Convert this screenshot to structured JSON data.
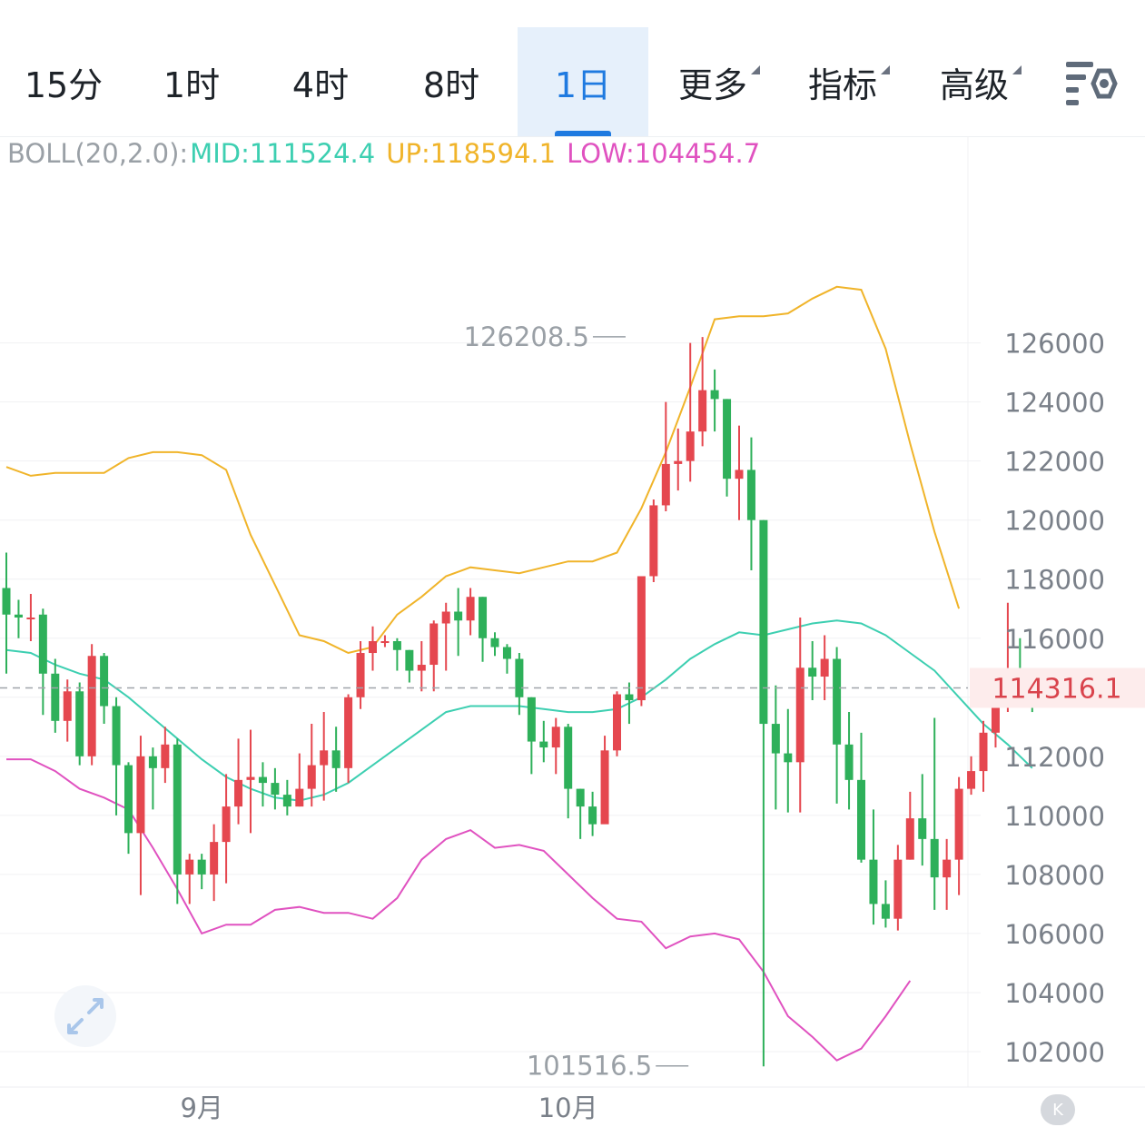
{
  "tabs": [
    {
      "label": "15分",
      "active": false,
      "dropdown": false
    },
    {
      "label": "1时",
      "active": false,
      "dropdown": false
    },
    {
      "label": "4时",
      "active": false,
      "dropdown": false
    },
    {
      "label": "8时",
      "active": false,
      "dropdown": false
    },
    {
      "label": "1日",
      "active": true,
      "dropdown": false
    },
    {
      "label": "更多",
      "active": false,
      "dropdown": true
    },
    {
      "label": "指标",
      "active": false,
      "dropdown": true
    },
    {
      "label": "高级",
      "active": false,
      "dropdown": true
    }
  ],
  "settings_icon": "chart-settings-icon",
  "indicator": {
    "name": "BOLL(20,2.0):",
    "mid": "MID:111524.4",
    "up": "UP:118594.1",
    "low": "LOW:104454.7"
  },
  "colors": {
    "up": "#e5474f",
    "down": "#2eb05a",
    "mid": "#3dcfb1",
    "upper": "#f0b42a",
    "lower": "#e052c0",
    "accent": "#1f7ae0"
  },
  "expand_icon": "expand-arrows-icon",
  "collapse_icon": "collapse-k-icon",
  "chart_data": {
    "type": "candlestick",
    "y_ticks": [
      126000,
      124000,
      122000,
      120000,
      118000,
      116000,
      114000,
      112000,
      110000,
      108000,
      106000,
      104000,
      102000
    ],
    "ylim": [
      100800,
      133000
    ],
    "x_labels": [
      {
        "label": "9月",
        "index": 16
      },
      {
        "label": "10月",
        "index": 46
      }
    ],
    "current_price": 114316.1,
    "current_price_label": "114316.1",
    "max_label": "126208.5",
    "min_label": "101516.5",
    "max_index": 51,
    "min_index": 56,
    "candles": [
      [
        117700,
        116800,
        118900,
        114800
      ],
      [
        116800,
        116700,
        117300,
        116000
      ],
      [
        116700,
        116700,
        117500,
        115900
      ],
      [
        116800,
        114800,
        117000,
        113400
      ],
      [
        114800,
        113200,
        115300,
        112800
      ],
      [
        113200,
        114200,
        114600,
        112500
      ],
      [
        114200,
        112000,
        114500,
        111700
      ],
      [
        112000,
        115400,
        115800,
        111700
      ],
      [
        115400,
        113700,
        115500,
        113100
      ],
      [
        113700,
        111700,
        114000,
        110000
      ],
      [
        111700,
        109400,
        111800,
        108700
      ],
      [
        109400,
        112000,
        112700,
        107300
      ],
      [
        112000,
        111600,
        112300,
        110200
      ],
      [
        111600,
        112400,
        113000,
        111100
      ],
      [
        112400,
        108000,
        112600,
        107000
      ],
      [
        108000,
        108500,
        108700,
        107000
      ],
      [
        108500,
        108000,
        108700,
        107500
      ],
      [
        108000,
        109100,
        109700,
        107100
      ],
      [
        109100,
        110300,
        111400,
        107700
      ],
      [
        110300,
        111200,
        112600,
        109700
      ],
      [
        111200,
        111300,
        112900,
        109400
      ],
      [
        111300,
        111100,
        111800,
        110300
      ],
      [
        111100,
        110700,
        111600,
        110200
      ],
      [
        110700,
        110300,
        111200,
        110000
      ],
      [
        110300,
        110900,
        112100,
        110300
      ],
      [
        110900,
        111700,
        113100,
        110300
      ],
      [
        111700,
        112200,
        113500,
        110500
      ],
      [
        112200,
        111600,
        113000,
        110800
      ],
      [
        111600,
        114000,
        114100,
        111100
      ],
      [
        114000,
        115500,
        115900,
        113600
      ],
      [
        115500,
        115900,
        116400,
        114900
      ],
      [
        115900,
        115900,
        116100,
        115700
      ],
      [
        115900,
        115600,
        116000,
        114900
      ],
      [
        115600,
        114900,
        115600,
        114500
      ],
      [
        114900,
        115100,
        115900,
        114200
      ],
      [
        115100,
        116500,
        116600,
        114200
      ],
      [
        116500,
        116900,
        117200,
        114900
      ],
      [
        116900,
        116600,
        117700,
        115400
      ],
      [
        116600,
        117400,
        117700,
        116100
      ],
      [
        117400,
        116000,
        117400,
        115200
      ],
      [
        116000,
        115700,
        116200,
        115400
      ],
      [
        115700,
        115300,
        115800,
        114800
      ],
      [
        115300,
        114000,
        115500,
        113400
      ],
      [
        114000,
        112500,
        114000,
        111400
      ],
      [
        112500,
        112300,
        113200,
        111800
      ],
      [
        112300,
        113000,
        113300,
        111400
      ],
      [
        113000,
        110900,
        113100,
        109900
      ],
      [
        110900,
        110300,
        110900,
        109200
      ],
      [
        110300,
        109700,
        110800,
        109300
      ],
      [
        109700,
        112200,
        112700,
        109800
      ],
      [
        112200,
        114100,
        114200,
        112000
      ],
      [
        114100,
        113900,
        114500,
        113100
      ],
      [
        113900,
        118100,
        118100,
        113700
      ],
      [
        118100,
        120500,
        120700,
        117900
      ],
      [
        120500,
        121900,
        124000,
        120300
      ],
      [
        121900,
        122000,
        123100,
        121000
      ],
      [
        122000,
        123000,
        126000,
        121300
      ],
      [
        123000,
        124400,
        126200,
        122500
      ],
      [
        124400,
        124100,
        125100,
        123000
      ],
      [
        124100,
        121400,
        124100,
        120800
      ],
      [
        121400,
        121700,
        123200,
        120000
      ],
      [
        121700,
        120000,
        122800,
        118300
      ],
      [
        120000,
        113100,
        120000,
        101500
      ],
      [
        113100,
        112100,
        114400,
        110200
      ],
      [
        112100,
        111800,
        113600,
        110100
      ],
      [
        111800,
        115000,
        116700,
        110100
      ],
      [
        115000,
        114700,
        115900,
        113900
      ],
      [
        114700,
        115300,
        116100,
        113900
      ],
      [
        115300,
        112400,
        115700,
        110400
      ],
      [
        112400,
        111200,
        113500,
        110200
      ],
      [
        111200,
        108500,
        112800,
        108400
      ],
      [
        108500,
        107000,
        110200,
        106300
      ],
      [
        107000,
        106500,
        107800,
        106200
      ],
      [
        106500,
        108500,
        109000,
        106100
      ],
      [
        108500,
        109900,
        110800,
        108500
      ],
      [
        109900,
        109200,
        111400,
        108300
      ],
      [
        109200,
        107900,
        113300,
        106800
      ],
      [
        107900,
        108500,
        109200,
        106800
      ],
      [
        108500,
        110900,
        111300,
        107300
      ],
      [
        110900,
        111500,
        112000,
        110700
      ],
      [
        111500,
        112800,
        113200,
        110800
      ],
      [
        112800,
        114500,
        114900,
        112300
      ],
      [
        114500,
        114900,
        117200,
        113500
      ],
      [
        114900,
        114500,
        116000,
        114300
      ],
      [
        114500,
        114300,
        114700,
        113500
      ]
    ],
    "mid": [
      [
        0,
        115600
      ],
      [
        2,
        115500
      ],
      [
        4,
        115100
      ],
      [
        6,
        114800
      ],
      [
        8,
        114600
      ],
      [
        10,
        114000
      ],
      [
        12,
        113300
      ],
      [
        14,
        112600
      ],
      [
        16,
        111900
      ],
      [
        18,
        111300
      ],
      [
        20,
        110900
      ],
      [
        22,
        110600
      ],
      [
        24,
        110500
      ],
      [
        26,
        110700
      ],
      [
        28,
        111100
      ],
      [
        30,
        111700
      ],
      [
        32,
        112300
      ],
      [
        34,
        112900
      ],
      [
        36,
        113500
      ],
      [
        38,
        113700
      ],
      [
        40,
        113700
      ],
      [
        42,
        113700
      ],
      [
        44,
        113600
      ],
      [
        46,
        113500
      ],
      [
        48,
        113500
      ],
      [
        50,
        113600
      ],
      [
        52,
        114000
      ],
      [
        54,
        114600
      ],
      [
        56,
        115300
      ],
      [
        58,
        115800
      ],
      [
        60,
        116200
      ],
      [
        62,
        116100
      ],
      [
        64,
        116300
      ],
      [
        66,
        116500
      ],
      [
        68,
        116600
      ],
      [
        70,
        116500
      ],
      [
        72,
        116100
      ],
      [
        74,
        115500
      ],
      [
        76,
        114900
      ],
      [
        78,
        114000
      ],
      [
        80,
        113100
      ],
      [
        82,
        112400
      ],
      [
        84,
        111600
      ]
    ],
    "upper": [
      [
        0,
        121800
      ],
      [
        2,
        121500
      ],
      [
        4,
        121600
      ],
      [
        6,
        121600
      ],
      [
        8,
        121600
      ],
      [
        10,
        122100
      ],
      [
        12,
        122300
      ],
      [
        14,
        122300
      ],
      [
        16,
        122200
      ],
      [
        18,
        121700
      ],
      [
        20,
        119500
      ],
      [
        22,
        117800
      ],
      [
        24,
        116100
      ],
      [
        26,
        115900
      ],
      [
        28,
        115500
      ],
      [
        30,
        115700
      ],
      [
        32,
        116800
      ],
      [
        34,
        117400
      ],
      [
        36,
        118100
      ],
      [
        38,
        118400
      ],
      [
        40,
        118300
      ],
      [
        42,
        118200
      ],
      [
        44,
        118400
      ],
      [
        46,
        118600
      ],
      [
        48,
        118600
      ],
      [
        50,
        118900
      ],
      [
        52,
        120400
      ],
      [
        54,
        122300
      ],
      [
        56,
        124500
      ],
      [
        58,
        126800
      ],
      [
        60,
        126900
      ],
      [
        62,
        126900
      ],
      [
        64,
        127000
      ],
      [
        66,
        127500
      ],
      [
        68,
        127900
      ],
      [
        70,
        127800
      ],
      [
        72,
        125800
      ],
      [
        74,
        122600
      ],
      [
        76,
        119600
      ],
      [
        78,
        117000
      ]
    ],
    "lower": [
      [
        0,
        111900
      ],
      [
        2,
        111900
      ],
      [
        4,
        111500
      ],
      [
        6,
        110900
      ],
      [
        8,
        110600
      ],
      [
        10,
        110200
      ],
      [
        12,
        108900
      ],
      [
        14,
        107500
      ],
      [
        16,
        106000
      ],
      [
        18,
        106300
      ],
      [
        20,
        106300
      ],
      [
        22,
        106800
      ],
      [
        24,
        106900
      ],
      [
        26,
        106700
      ],
      [
        28,
        106700
      ],
      [
        30,
        106500
      ],
      [
        32,
        107200
      ],
      [
        34,
        108500
      ],
      [
        36,
        109200
      ],
      [
        38,
        109500
      ],
      [
        40,
        108900
      ],
      [
        42,
        109000
      ],
      [
        44,
        108800
      ],
      [
        46,
        108000
      ],
      [
        48,
        107200
      ],
      [
        50,
        106500
      ],
      [
        52,
        106400
      ],
      [
        54,
        105500
      ],
      [
        56,
        105900
      ],
      [
        58,
        106000
      ],
      [
        60,
        105800
      ],
      [
        62,
        104700
      ],
      [
        64,
        103200
      ],
      [
        66,
        102500
      ],
      [
        68,
        101700
      ],
      [
        70,
        102100
      ],
      [
        72,
        103200
      ],
      [
        74,
        104400
      ]
    ]
  }
}
